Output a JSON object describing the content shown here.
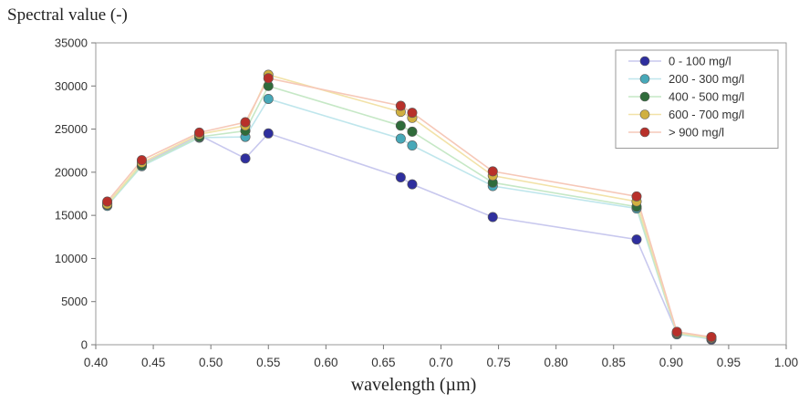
{
  "chart_data": {
    "type": "scatter",
    "ylabel": "Spectral value (-)",
    "xlabel": "wavelength (µm)",
    "xlim": [
      0.4,
      1.0
    ],
    "ylim": [
      0,
      35000
    ],
    "x_ticks": [
      "0.40",
      "0.45",
      "0.50",
      "0.55",
      "0.60",
      "0.65",
      "0.70",
      "0.75",
      "0.80",
      "0.85",
      "0.90",
      "0.95",
      "1.00"
    ],
    "y_ticks": [
      "0",
      "5000",
      "10000",
      "15000",
      "20000",
      "25000",
      "30000",
      "35000"
    ],
    "x": [
      0.41,
      0.44,
      0.49,
      0.53,
      0.55,
      0.665,
      0.675,
      0.745,
      0.87,
      0.905,
      0.935
    ],
    "grid": false,
    "legend_position": "top-right",
    "series": [
      {
        "name": "0 - 100 mg/l",
        "marker_color": "#2f2f9e",
        "line_color": "#c8c8ee",
        "values": [
          16400,
          20900,
          24300,
          21600,
          24500,
          19400,
          18600,
          14800,
          12200,
          1400,
          600
        ]
      },
      {
        "name": "200 - 300 mg/l",
        "marker_color": "#47a8b8",
        "line_color": "#bfe6ec",
        "values": [
          16100,
          20700,
          24000,
          24100,
          28500,
          23900,
          23100,
          18400,
          15800,
          1200,
          700
        ]
      },
      {
        "name": "400 - 500 mg/l",
        "marker_color": "#2f6b3a",
        "line_color": "#c6e8c6",
        "values": [
          16200,
          20800,
          24100,
          24800,
          30000,
          25400,
          24700,
          18800,
          16000,
          1300,
          750
        ]
      },
      {
        "name": "600 - 700 mg/l",
        "marker_color": "#d0b040",
        "line_color": "#f2e2a8",
        "values": [
          16300,
          21100,
          24400,
          25400,
          31300,
          27000,
          26300,
          19600,
          16600,
          1400,
          800
        ]
      },
      {
        "name": "> 900 mg/l",
        "marker_color": "#b8302a",
        "line_color": "#f6c8b8",
        "values": [
          16600,
          21400,
          24600,
          25800,
          30900,
          27700,
          26900,
          20100,
          17200,
          1500,
          900
        ]
      }
    ]
  }
}
